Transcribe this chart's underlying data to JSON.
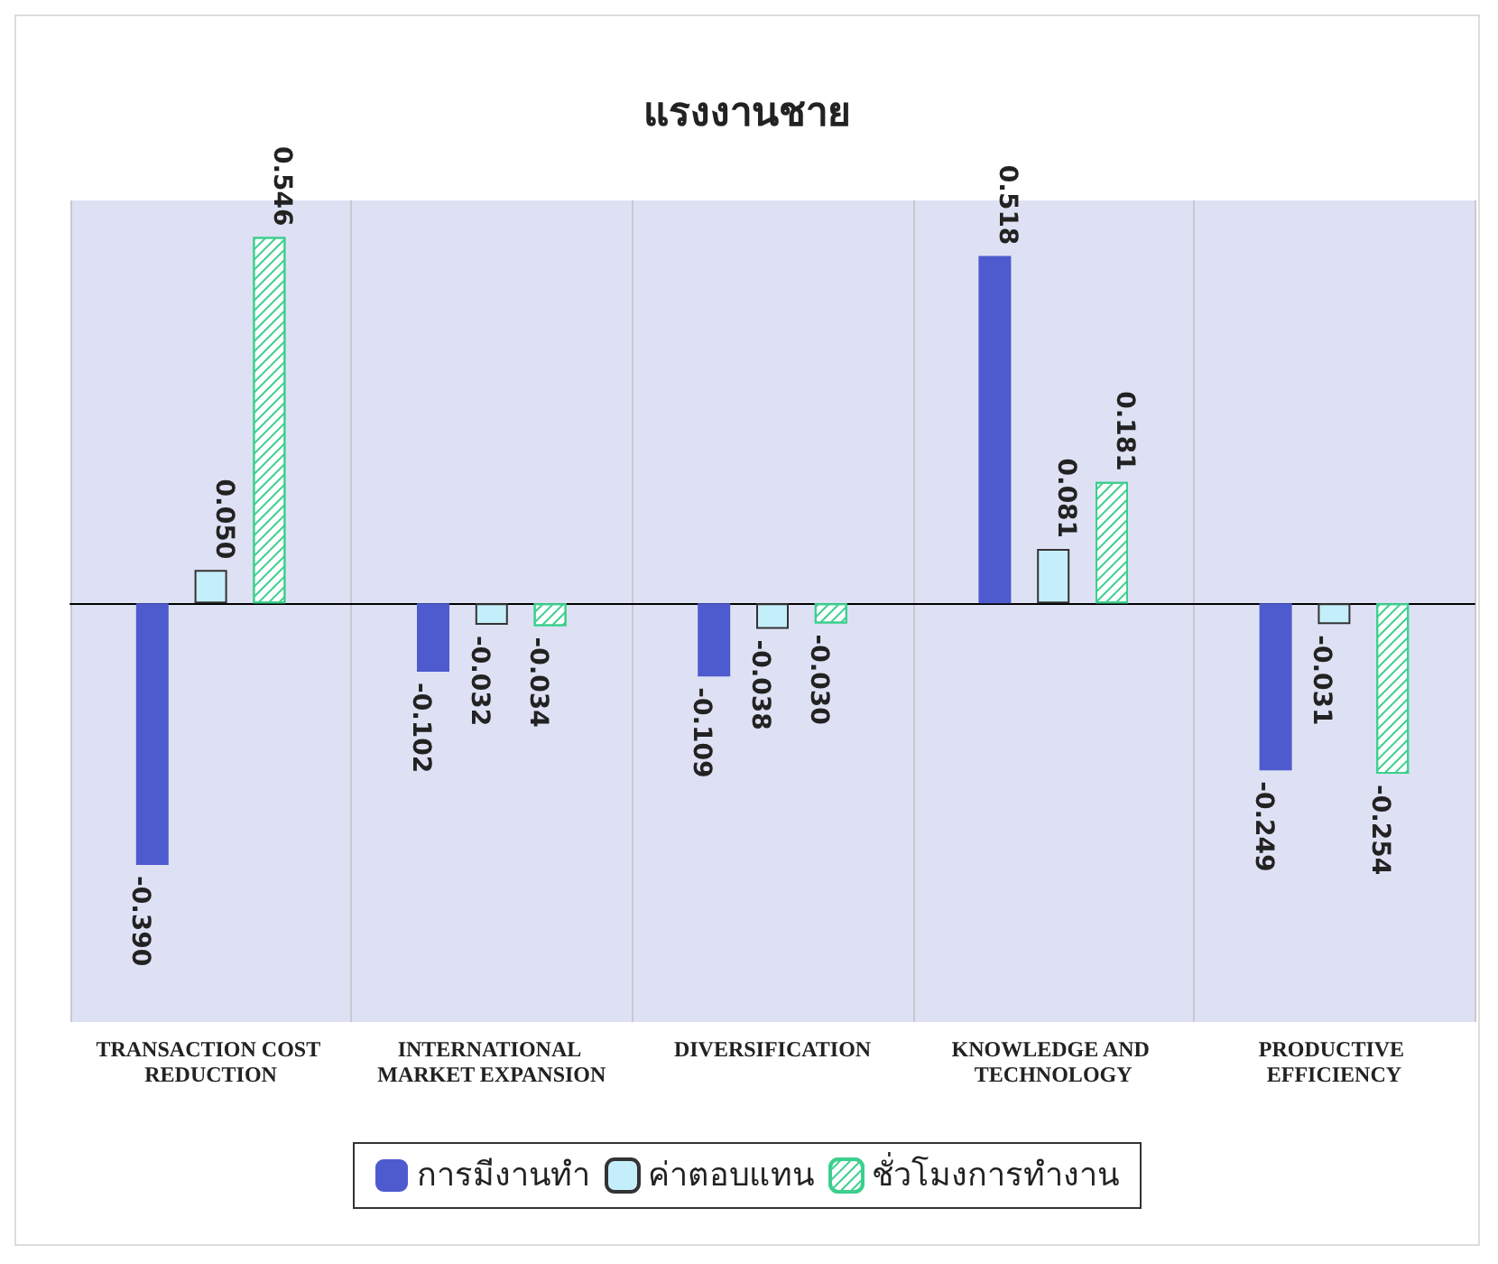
{
  "chart_data": {
    "type": "bar",
    "title": "แรงงานชาย",
    "categories": [
      "TRANSACTION COST REDUCTION",
      "INTERNATIONAL MARKET EXPANSION",
      "DIVERSIFICATION",
      "KNOWLEDGE AND TECHNOLOGY",
      "PRODUCTIVE EFFICIENCY"
    ],
    "series": [
      {
        "name": "การมีงานทำ",
        "color": "#4e5bcf",
        "values": [
          -0.39,
          -0.102,
          -0.109,
          0.518,
          -0.249
        ],
        "value_labels": [
          "-0.390",
          "-0.102",
          "-0.109",
          "0.518",
          "-0.249"
        ]
      },
      {
        "name": "ค่าตอบแทน",
        "color": "#c4eefa",
        "values": [
          0.05,
          -0.032,
          -0.038,
          0.081,
          -0.031
        ],
        "value_labels": [
          "0.050",
          "-0.032",
          "-0.038",
          "0.081",
          "-0.031"
        ]
      },
      {
        "name": "ชั่วโมงการทำงาน",
        "color": "#3ccf8e",
        "values": [
          0.546,
          -0.034,
          -0.03,
          0.181,
          -0.254
        ],
        "value_labels": [
          "0.546",
          "-0.034",
          "-0.030",
          "0.181",
          "-0.254"
        ]
      }
    ],
    "grid": "x",
    "legend": "bottom"
  }
}
